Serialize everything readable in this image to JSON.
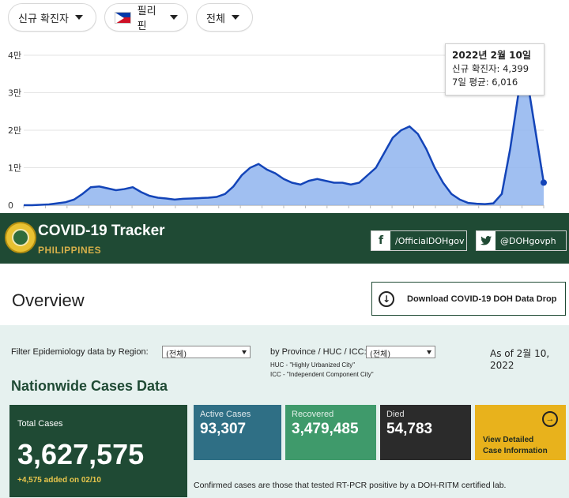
{
  "filters": {
    "metric": "신규 확진자",
    "country": "필리핀",
    "range": "전체"
  },
  "chart_data": {
    "type": "area",
    "x_range": [
      "2020-03",
      "2022-02-10"
    ],
    "ylim": [
      0,
      40000
    ],
    "y_ticks": [
      "0",
      "1만",
      "2만",
      "3만",
      "4만"
    ],
    "series": [
      {
        "values": [
          0,
          0,
          100,
          200,
          500,
          800,
          1500,
          3000,
          4800,
          5000,
          4500,
          4000,
          4300,
          4800,
          3500,
          2500,
          2000,
          1800,
          1500,
          1700,
          1800,
          1900,
          2000,
          2200,
          3000,
          5000,
          8000,
          10000,
          11000,
          9500,
          8500,
          7000,
          6000,
          5500,
          6500,
          7000,
          6500,
          6000,
          6000,
          5500,
          6000,
          8000,
          10000,
          14000,
          18000,
          20000,
          21000,
          19000,
          15000,
          10000,
          6000,
          3000,
          1500,
          600,
          400,
          300,
          500,
          3000,
          15000,
          30000,
          34000,
          20000,
          6016
        ]
      }
    ]
  },
  "tooltip": {
    "date": "2022년 2월 10일",
    "cases": "신규 확진자: 4,399",
    "avg": "7일 평균: 6,016"
  },
  "header": {
    "title": "COVID-19 Tracker",
    "subtitle": "PHILIPPINES",
    "facebook": "/OfficialDOHgov",
    "twitter": "@DOHgovph"
  },
  "overview": {
    "title": "Overview",
    "download_label": "Download COVID-19 DOH Data Drop"
  },
  "panel": {
    "region_label": "Filter Epidemiology data by Region:",
    "region_value": "(전체)",
    "province_label": "by Province / HUC / ICC:",
    "province_value": "(전체)",
    "huc_note": "HUC - \"Highly Urbanized City\"",
    "icc_note": "ICC - \"Independent Component City\"",
    "as_of": "As of 2월 10, 2022",
    "nation_title": "Nationwide Cases Data",
    "total_label": "Total Cases",
    "total_value": "3,627,575",
    "total_added": "+4,575 added on 02/10",
    "active_label": "Active Cases",
    "active_value": "93,307",
    "recovered_label": "Recovered",
    "recovered_value": "3,479,485",
    "died_label": "Died",
    "died_value": "54,783",
    "detail_line1": "View Detailed",
    "detail_line2": "Case Information",
    "confirmed_note": "Confirmed cases are those that tested RT-PCR positive by a DOH-RITM certified lab."
  }
}
